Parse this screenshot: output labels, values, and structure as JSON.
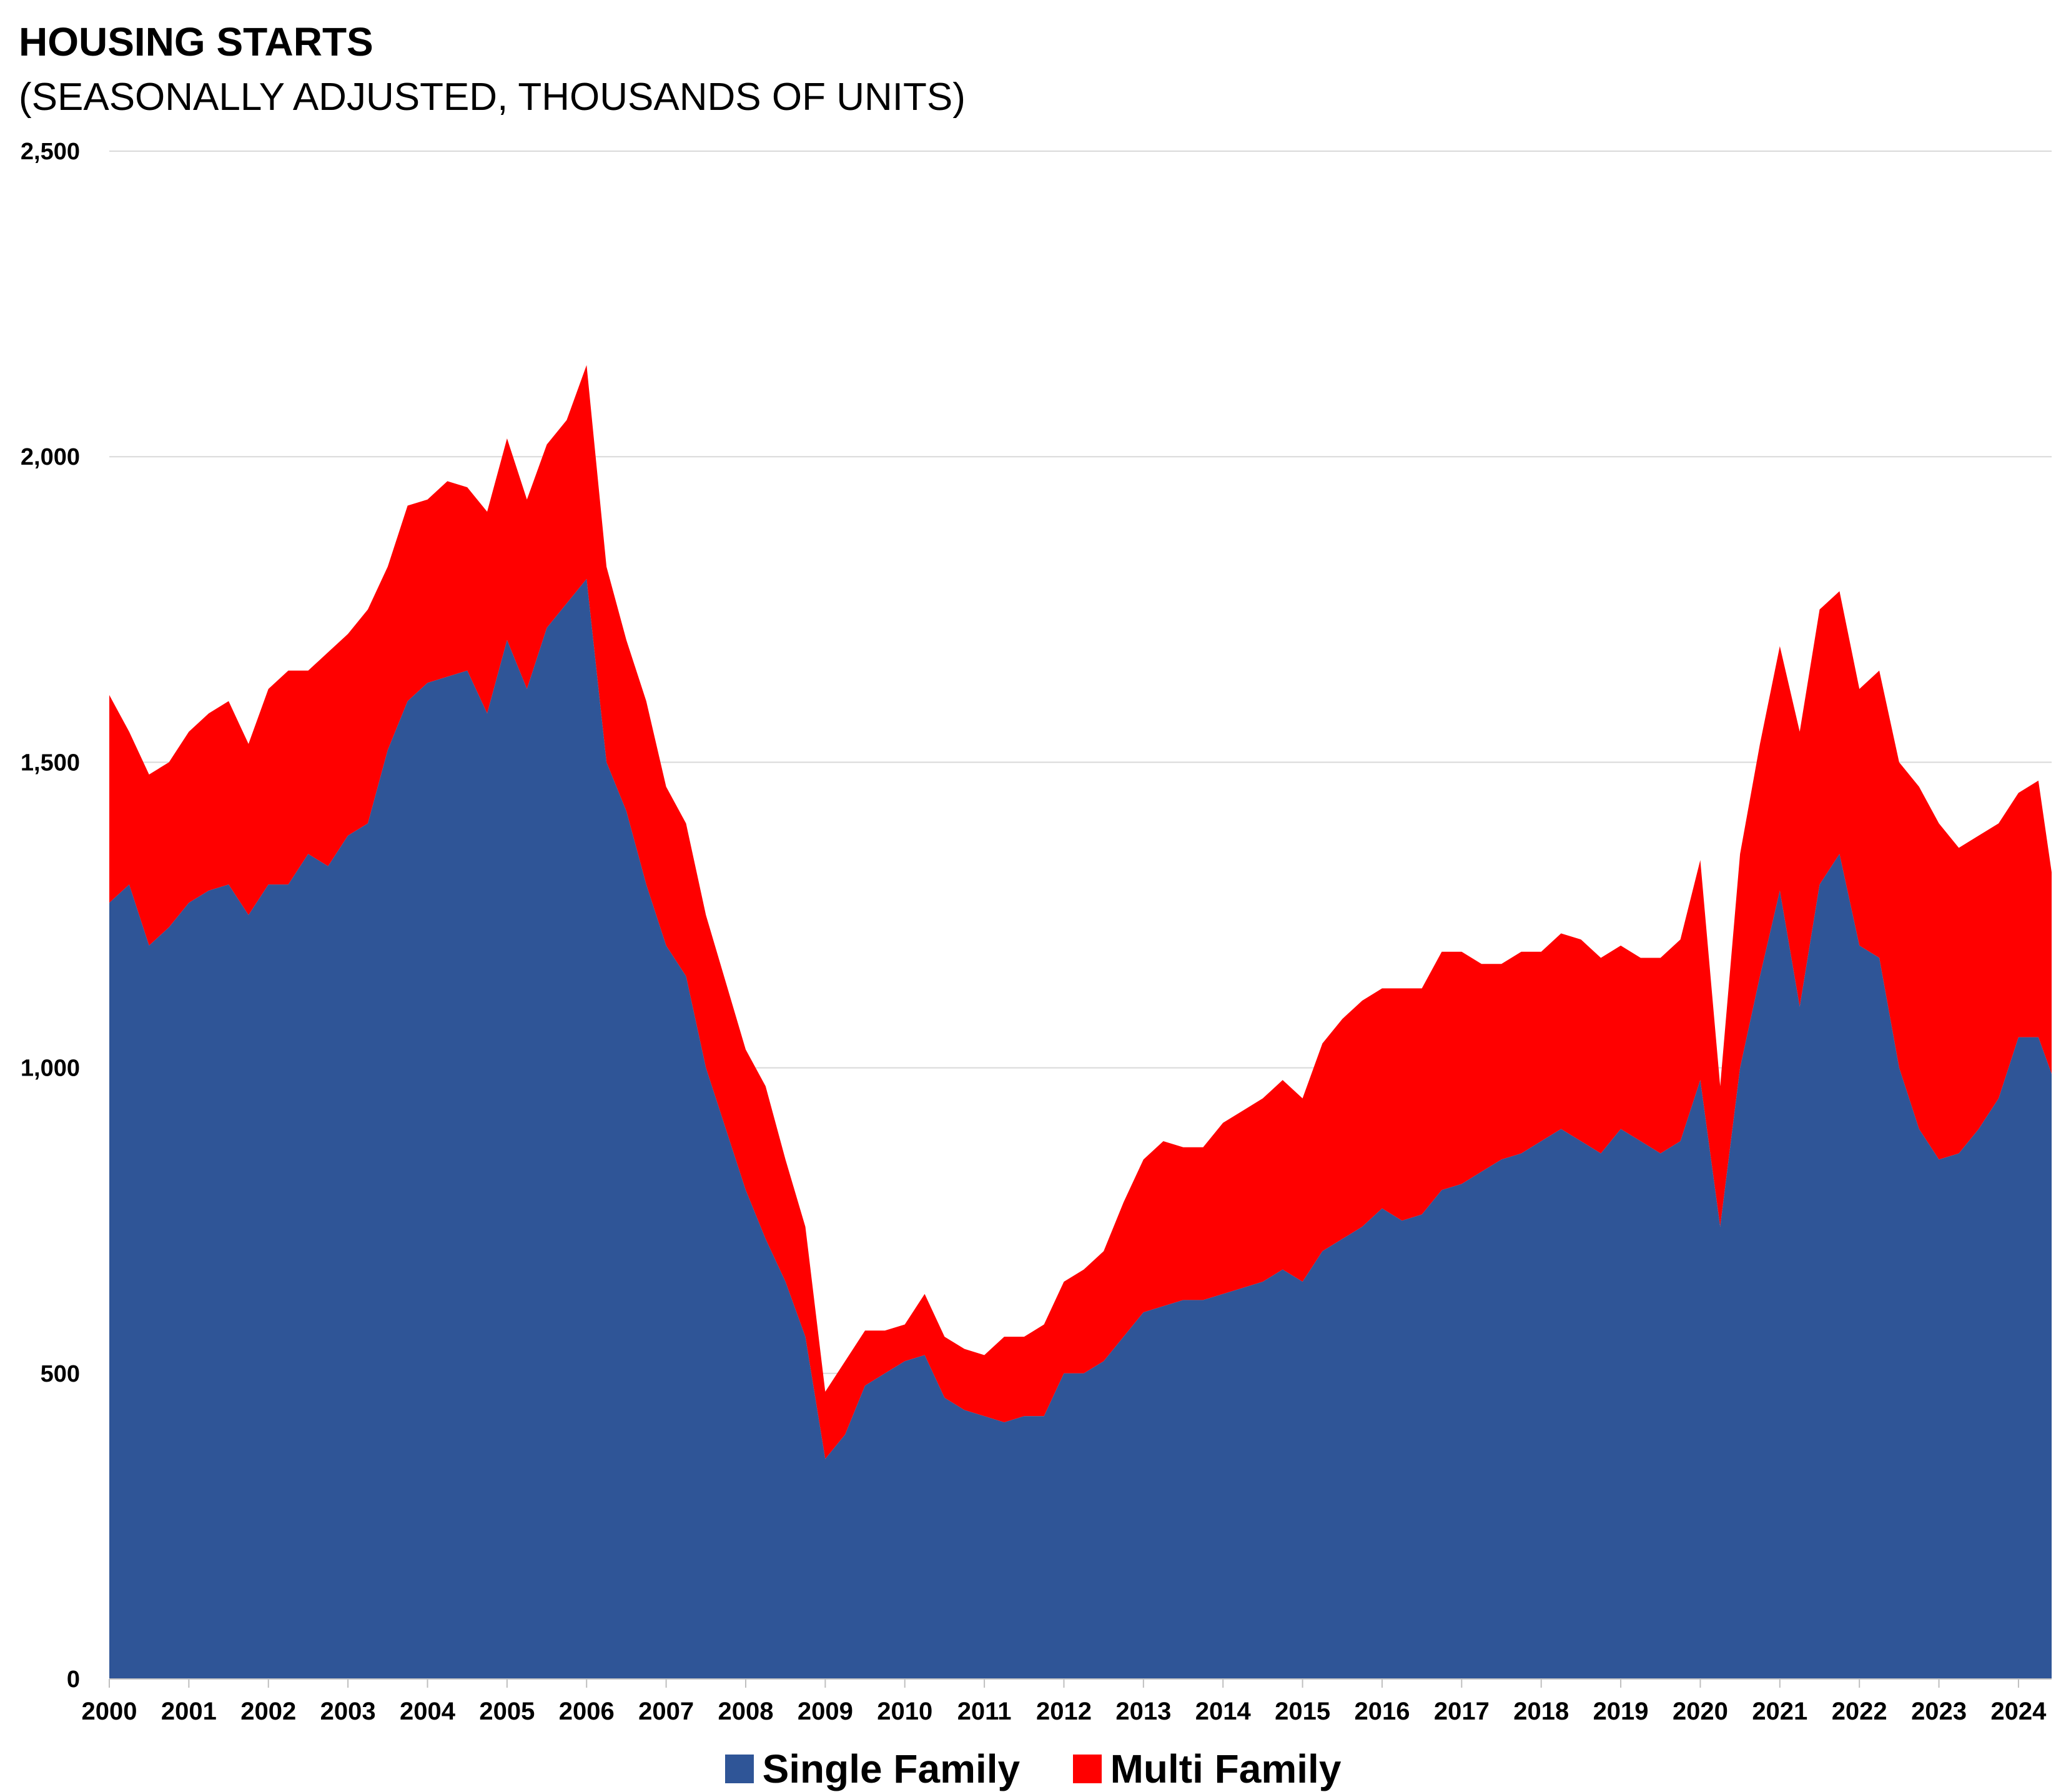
{
  "chart_data": {
    "type": "area",
    "stacked": true,
    "title": "HOUSING STARTS",
    "subtitle": "(SEASONALLY ADJUSTED, THOUSANDS OF UNITS)",
    "xlabel": "",
    "ylabel": "",
    "ylim": [
      0,
      2500
    ],
    "yticks": [
      0,
      500,
      1000,
      1500,
      2000,
      2500
    ],
    "ytick_labels": [
      "0",
      "500",
      "1,000",
      "1,500",
      "2,000",
      "2,500"
    ],
    "xticks": [
      "2000",
      "2001",
      "2002",
      "2003",
      "2004",
      "2005",
      "2006",
      "2007",
      "2008",
      "2009",
      "2010",
      "2011",
      "2012",
      "2013",
      "2014",
      "2015",
      "2016",
      "2017",
      "2018",
      "2019",
      "2020",
      "2021",
      "2022",
      "2023",
      "2024"
    ],
    "xlim": [
      "2000-01",
      "2024-06"
    ],
    "grid": "horizontal",
    "legend_position": "bottom",
    "x": [
      "2000-01",
      "2000-04",
      "2000-07",
      "2000-10",
      "2001-01",
      "2001-04",
      "2001-07",
      "2001-10",
      "2002-01",
      "2002-04",
      "2002-07",
      "2002-10",
      "2003-01",
      "2003-04",
      "2003-07",
      "2003-10",
      "2004-01",
      "2004-04",
      "2004-07",
      "2004-10",
      "2005-01",
      "2005-04",
      "2005-07",
      "2005-10",
      "2006-01",
      "2006-04",
      "2006-07",
      "2006-10",
      "2007-01",
      "2007-04",
      "2007-07",
      "2007-10",
      "2008-01",
      "2008-04",
      "2008-07",
      "2008-10",
      "2009-01",
      "2009-04",
      "2009-07",
      "2009-10",
      "2010-01",
      "2010-04",
      "2010-07",
      "2010-10",
      "2011-01",
      "2011-04",
      "2011-07",
      "2011-10",
      "2012-01",
      "2012-04",
      "2012-07",
      "2012-10",
      "2013-01",
      "2013-04",
      "2013-07",
      "2013-10",
      "2014-01",
      "2014-04",
      "2014-07",
      "2014-10",
      "2015-01",
      "2015-04",
      "2015-07",
      "2015-10",
      "2016-01",
      "2016-04",
      "2016-07",
      "2016-10",
      "2017-01",
      "2017-04",
      "2017-07",
      "2017-10",
      "2018-01",
      "2018-04",
      "2018-07",
      "2018-10",
      "2019-01",
      "2019-04",
      "2019-07",
      "2019-10",
      "2020-01",
      "2020-04",
      "2020-07",
      "2020-10",
      "2021-01",
      "2021-04",
      "2021-07",
      "2021-10",
      "2022-01",
      "2022-04",
      "2022-07",
      "2022-10",
      "2023-01",
      "2023-04",
      "2023-07",
      "2023-10",
      "2024-01",
      "2024-04",
      "2024-06"
    ],
    "series": [
      {
        "name": "Single Family",
        "color": "#2F5597",
        "values": [
          1270,
          1300,
          1200,
          1230,
          1270,
          1290,
          1300,
          1250,
          1300,
          1300,
          1350,
          1330,
          1380,
          1400,
          1520,
          1600,
          1630,
          1640,
          1650,
          1580,
          1700,
          1620,
          1720,
          1760,
          1800,
          1500,
          1420,
          1300,
          1200,
          1150,
          1000,
          900,
          800,
          720,
          650,
          560,
          360,
          400,
          480,
          500,
          520,
          530,
          460,
          440,
          430,
          420,
          430,
          430,
          500,
          500,
          520,
          560,
          600,
          610,
          620,
          620,
          630,
          640,
          650,
          670,
          650,
          700,
          720,
          740,
          770,
          750,
          760,
          800,
          810,
          830,
          850,
          860,
          880,
          900,
          880,
          860,
          900,
          880,
          860,
          880,
          980,
          740,
          1000,
          1150,
          1290,
          1100,
          1300,
          1350,
          1200,
          1180,
          1000,
          900,
          850,
          860,
          900,
          950,
          1050,
          1050,
          990
        ]
      },
      {
        "name": "Multi Family",
        "color": "#FF0000",
        "values": [
          340,
          250,
          280,
          270,
          280,
          290,
          300,
          280,
          320,
          350,
          300,
          350,
          330,
          350,
          300,
          320,
          300,
          320,
          300,
          330,
          330,
          310,
          300,
          300,
          350,
          320,
          280,
          300,
          260,
          250,
          250,
          240,
          230,
          250,
          200,
          180,
          110,
          120,
          90,
          70,
          60,
          100,
          100,
          100,
          100,
          140,
          130,
          150,
          150,
          170,
          180,
          220,
          250,
          270,
          250,
          250,
          280,
          290,
          300,
          310,
          300,
          340,
          360,
          370,
          360,
          380,
          370,
          390,
          380,
          340,
          320,
          330,
          310,
          320,
          330,
          320,
          300,
          300,
          320,
          330,
          360,
          230,
          350,
          380,
          400,
          450,
          450,
          430,
          420,
          470,
          500,
          560,
          550,
          500,
          480,
          450,
          400,
          420,
          330
        ]
      }
    ]
  }
}
